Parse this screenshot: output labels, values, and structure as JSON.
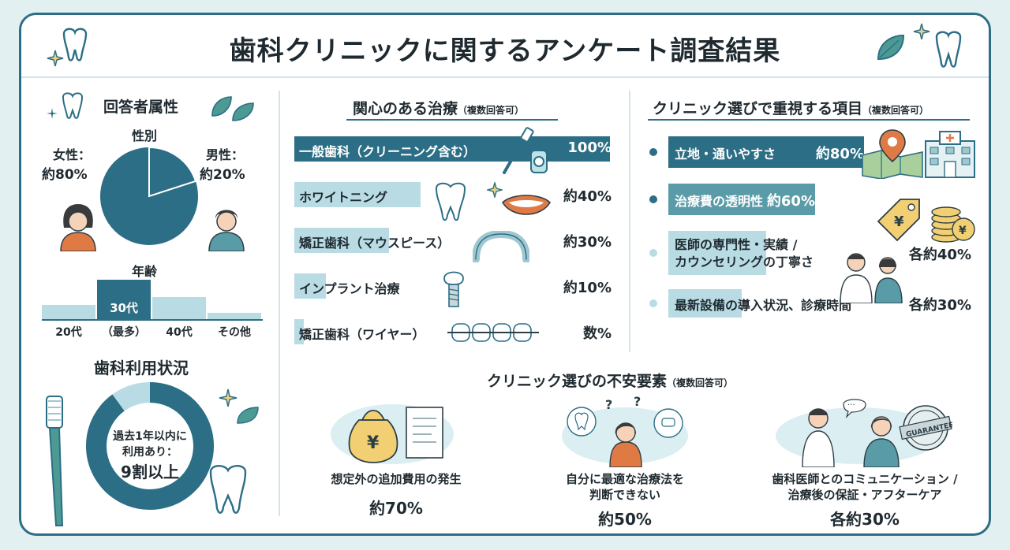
{
  "title": "歯科クリニックに関するアンケート調査結果",
  "attributes": {
    "heading": "回答者属性",
    "gender": {
      "heading": "性別",
      "female_label": "女性：",
      "female_value": "約80%",
      "male_label": "男性：",
      "male_value": "約20%",
      "female_share": 0.8,
      "male_share": 0.2
    },
    "age": {
      "heading": "年齢",
      "bars": [
        {
          "label": "20代",
          "level": 0.35
        },
        {
          "label": "（最多）",
          "value": "30代",
          "level": 1.0
        },
        {
          "label": "40代",
          "level": 0.55
        },
        {
          "label": "その他",
          "level": 0.15
        }
      ]
    }
  },
  "usage": {
    "heading": "歯科利用状況",
    "line1": "過去1年以内に",
    "line2": "利用あり：",
    "line3": "9割以上",
    "share": 0.9
  },
  "interest": {
    "heading": "関心のある治療",
    "sub": "（複数回答可）",
    "items": [
      {
        "label": "一般歯科（クリーニング含む）",
        "value": "100%",
        "level": 1.0
      },
      {
        "label": "ホワイトニング",
        "value": "約40%",
        "level": 0.4
      },
      {
        "label": "矯正歯科（マウスピース）",
        "value": "約30%",
        "level": 0.3
      },
      {
        "label": "インプラント治療",
        "value": "約10%",
        "level": 0.1
      },
      {
        "label": "矯正歯科（ワイヤー）",
        "value": "数%",
        "level": 0.03
      }
    ]
  },
  "priority": {
    "heading": "クリニック選びで重視する項目",
    "sub": "（複数回答可）",
    "items": [
      {
        "label": "立地・通いやすさ",
        "value": "約80%",
        "level": 0.8
      },
      {
        "label": "治療費の透明性",
        "value": "約60%",
        "level": 0.6
      },
      {
        "label": "医師の専門性・実績 /",
        "label2": "カウンセリングの丁寧さ",
        "value": "各約40%",
        "level": 0.4
      },
      {
        "label": "最新設備の導入状況、診療時間",
        "value": "各約30%",
        "level": 0.3
      }
    ],
    "tag_symbol": "¥",
    "coin_symbol": "¥"
  },
  "anxiety": {
    "heading": "クリニック選びの不安要素",
    "sub": "（複数回答可）",
    "items": [
      {
        "label": "想定外の追加費用の発生",
        "value": "約70%",
        "icon_symbol": "¥"
      },
      {
        "label": "自分に最適な治療法を",
        "label2": "判断できない",
        "value": "約50%"
      },
      {
        "label": "歯科医師とのコミュニケーション /",
        "label2": "治療後の保証・アフターケア",
        "value": "各約30%",
        "badge": "GUARANTEE"
      }
    ]
  },
  "colors": {
    "primary": "#2c6e85",
    "light": "#b9dce4",
    "pale": "#dbeef2",
    "accent": "#e07a45",
    "gold": "#e5a23a"
  }
}
